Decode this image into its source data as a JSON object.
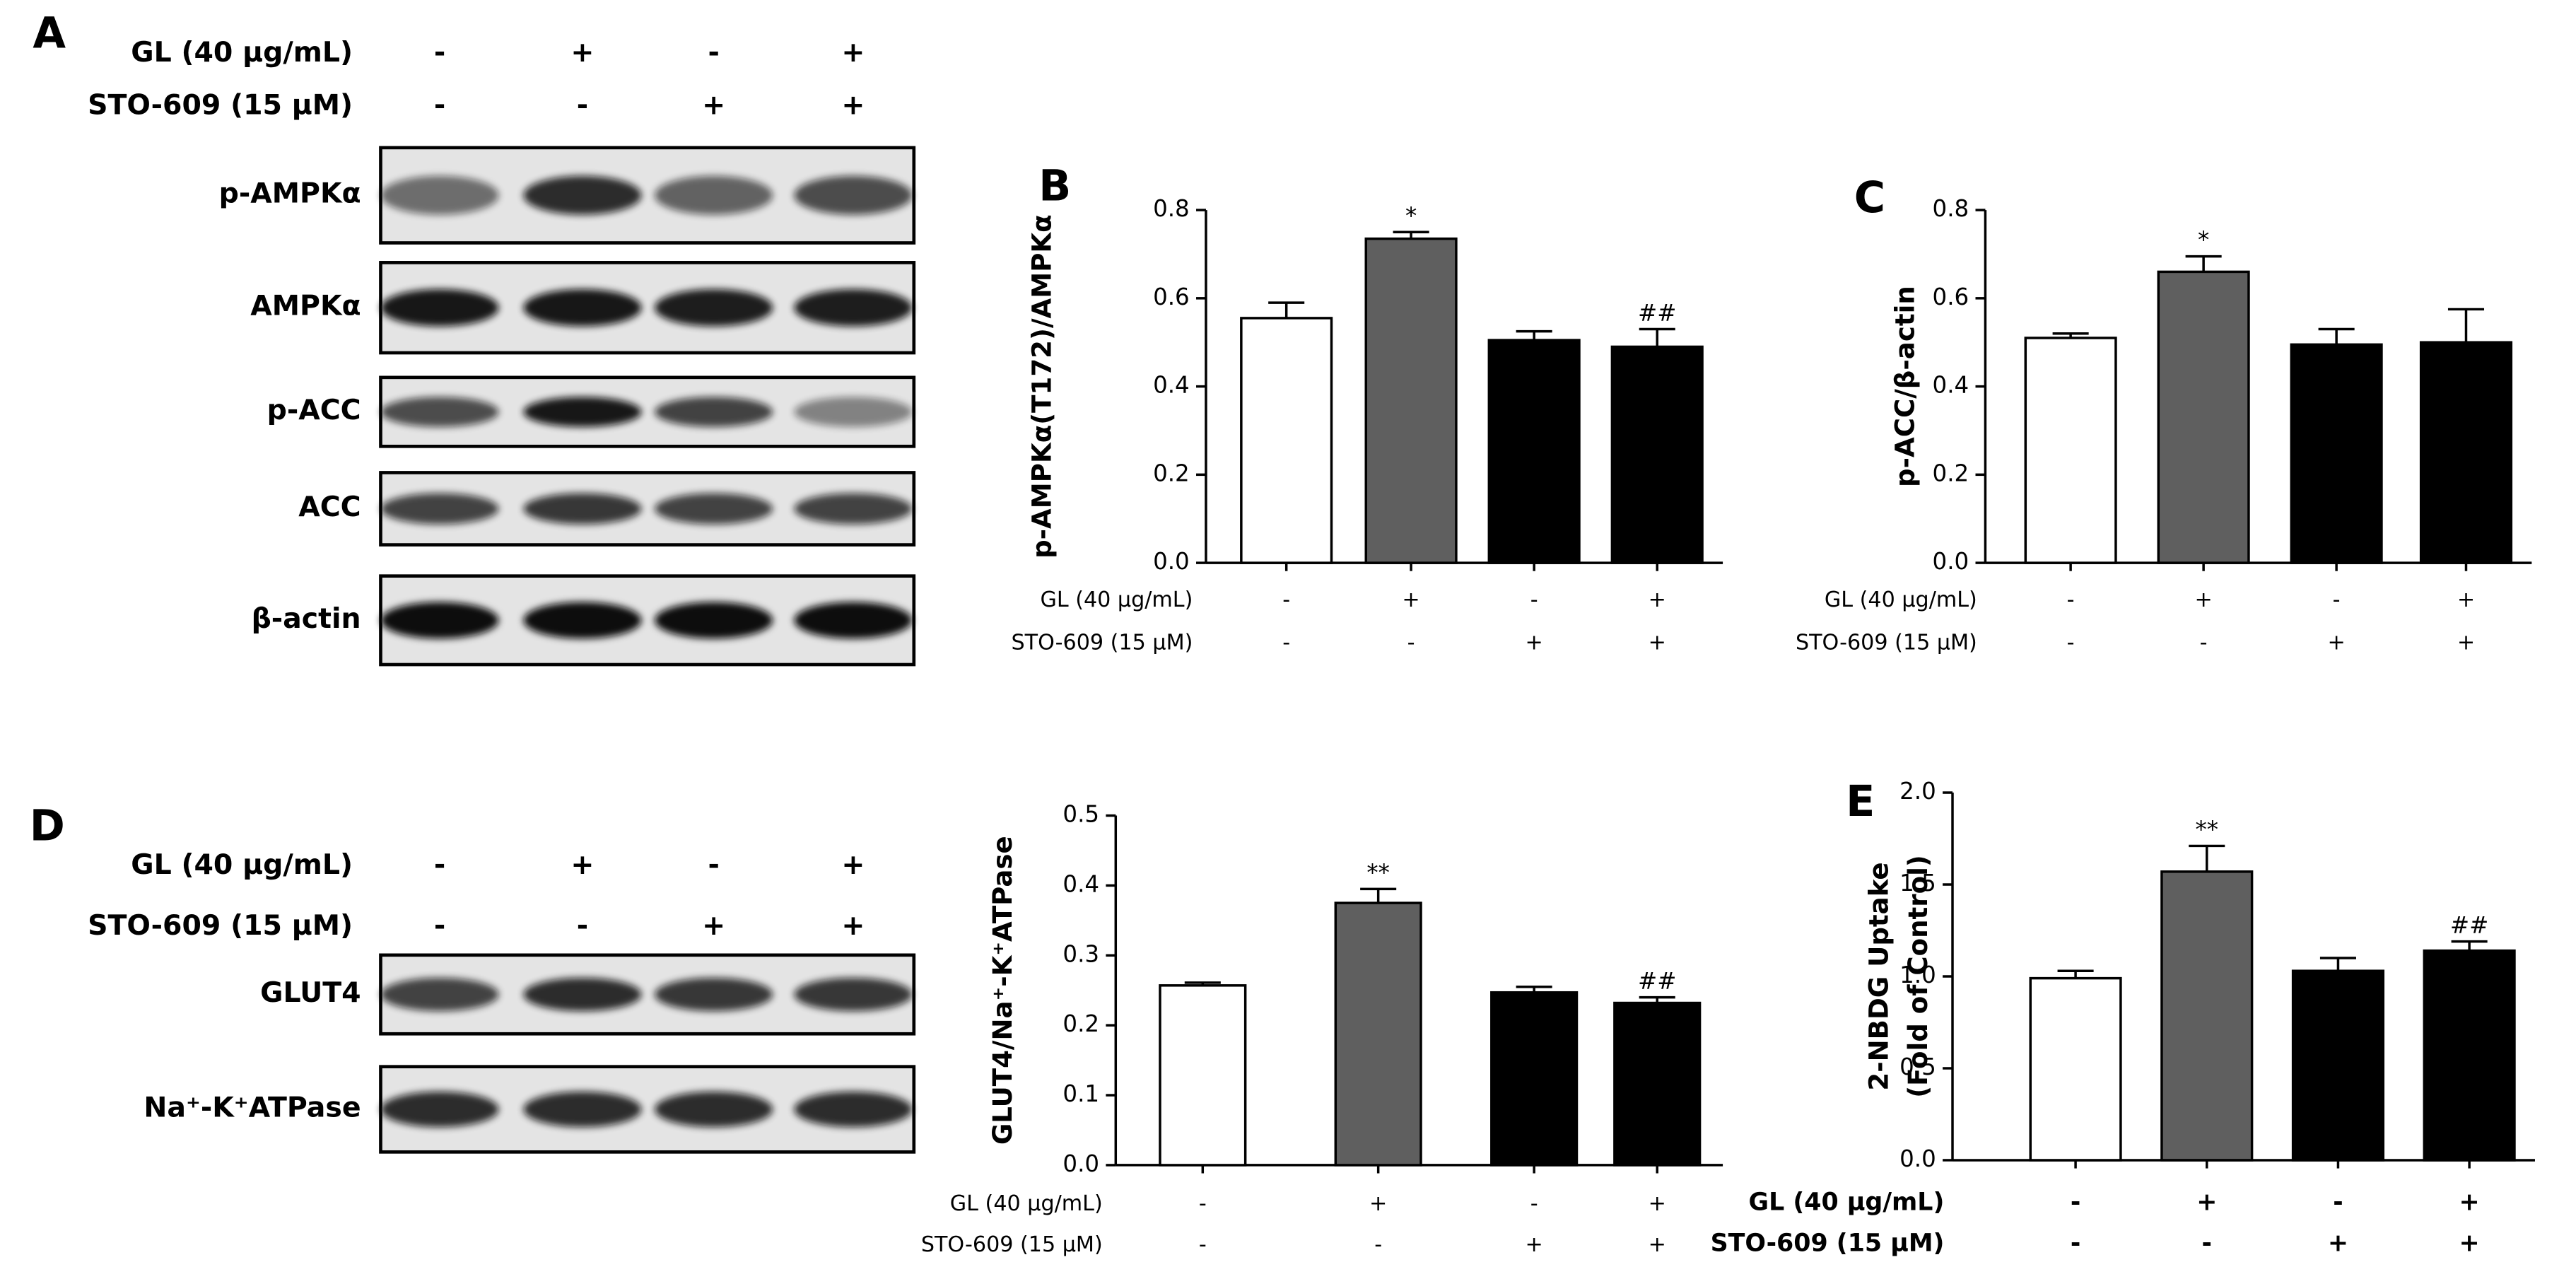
{
  "blots": [
    {
      "label": "A",
      "conditions": [
        {
          "name": "GL (40 μg/mL)",
          "signs": [
            "-",
            "+",
            "-",
            "+"
          ]
        },
        {
          "name": "STO-609 (15 μM)",
          "signs": [
            "-",
            "-",
            "+",
            "+"
          ]
        }
      ],
      "rows": [
        "p-AMPKα",
        "AMPKα",
        "p-ACC",
        "ACC",
        "β-actin"
      ]
    },
    {
      "label": "D",
      "conditions": [
        {
          "name": "GL (40 μg/mL)",
          "signs": [
            "-",
            "+",
            "-",
            "+"
          ]
        },
        {
          "name": "STO-609 (15 μM)",
          "signs": [
            "-",
            "-",
            "+",
            "+"
          ]
        }
      ],
      "rows": [
        "GLUT4",
        "Na⁺-K⁺ATPase"
      ]
    }
  ],
  "chart_data": [
    {
      "type": "bar",
      "label": "B",
      "ylabel": "p-AMPKα(T172)/AMPKα",
      "ylim": [
        0,
        0.8
      ],
      "yticks": [
        {
          "value": 0,
          "label": "0.0"
        },
        0.2,
        0.4,
        0.6,
        0.8
      ],
      "values": [
        0.555,
        0.735,
        0.505,
        0.49
      ],
      "errors": [
        0.035,
        0.015,
        0.02,
        0.04
      ],
      "colors": [
        "#ffffff",
        "#5f5f5f",
        "#000000",
        "#000000"
      ],
      "value_annotations": [
        null,
        "*",
        null,
        "##"
      ],
      "conditions": [
        {
          "name": "GL (40 μg/mL)",
          "signs": [
            "-",
            "+",
            "-",
            "+"
          ]
        },
        {
          "name": "STO-609 (15 μM)",
          "signs": [
            "-",
            "-",
            "+",
            "+"
          ]
        }
      ]
    },
    {
      "type": "bar",
      "label": "C",
      "ylabel": "p-ACC/β-actin",
      "ylim": [
        0,
        0.8
      ],
      "yticks": [
        {
          "value": 0,
          "label": "0.0"
        },
        0.2,
        0.4,
        0.6,
        0.8
      ],
      "values": [
        0.51,
        0.66,
        0.495,
        0.5
      ],
      "errors": [
        0.01,
        0.035,
        0.035,
        0.075
      ],
      "colors": [
        "#ffffff",
        "#5f5f5f",
        "#000000",
        "#000000"
      ],
      "value_annotations": [
        null,
        "*",
        null,
        null
      ],
      "conditions": [
        {
          "name": "GL (40 μg/mL)",
          "signs": [
            "-",
            "+",
            "-",
            "+"
          ]
        },
        {
          "name": "STO-609 (15 μM)",
          "signs": [
            "-",
            "-",
            "+",
            "+"
          ]
        }
      ]
    },
    {
      "type": "bar",
      "ylabel": "GLUT4/Na⁺-K⁺ATPase",
      "ylim": [
        0,
        0.5
      ],
      "yticks": [
        {
          "value": 0,
          "label": "0.0"
        },
        0.1,
        0.2,
        0.3,
        0.4,
        0.5
      ],
      "values": [
        0.257,
        0.375,
        0.247,
        0.232
      ],
      "errors": [
        0.004,
        0.02,
        0.008,
        0.008
      ],
      "colors": [
        "#ffffff",
        "#5f5f5f",
        "#000000",
        "#000000"
      ],
      "value_annotations": [
        null,
        "**",
        null,
        "##"
      ],
      "conditions": [
        {
          "name": "GL (40 μg/mL)",
          "signs": [
            "-",
            "+",
            "-",
            "+"
          ]
        },
        {
          "name": "STO-609 (15 μM)",
          "signs": [
            "-",
            "-",
            "+",
            "+"
          ]
        }
      ]
    },
    {
      "type": "bar",
      "label": "E",
      "ylabel": [
        "2-NBDG Uptake",
        "(Fold of Control)"
      ],
      "ylim": [
        0,
        2
      ],
      "yticks": [
        {
          "value": 0,
          "label": "0.0"
        },
        0.5,
        {
          "value": 1,
          "label": "1.0"
        },
        1.5,
        {
          "value": 2,
          "label": "2.0"
        }
      ],
      "values": [
        0.99,
        1.57,
        1.03,
        1.14
      ],
      "errors": [
        0.04,
        0.14,
        0.07,
        0.05
      ],
      "colors": [
        "#ffffff",
        "#5f5f5f",
        "#000000",
        "#000000"
      ],
      "value_annotations": [
        null,
        "**",
        null,
        "##"
      ],
      "conditions": [
        {
          "name": "GL (40 μg/mL)",
          "signs": [
            "-",
            "+",
            "-",
            "+"
          ]
        },
        {
          "name": "STO-609 (15 μM)",
          "signs": [
            "-",
            "-",
            "+",
            "+"
          ]
        }
      ]
    }
  ]
}
